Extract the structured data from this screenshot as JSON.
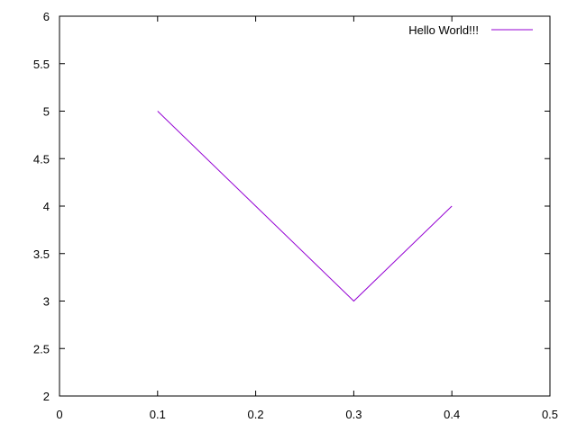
{
  "chart_data": {
    "type": "line",
    "title": "",
    "xlabel": "",
    "ylabel": "",
    "xlim": [
      0,
      0.5
    ],
    "ylim": [
      2,
      6
    ],
    "x_ticks": [
      0,
      0.1,
      0.2,
      0.3,
      0.4,
      0.5
    ],
    "x_tick_labels": [
      "0",
      "0.1",
      "0.2",
      "0.3",
      "0.4",
      "0.5"
    ],
    "y_ticks": [
      2,
      2.5,
      3,
      3.5,
      4,
      4.5,
      5,
      5.5,
      6
    ],
    "y_tick_labels": [
      "2",
      "2.5",
      "3",
      "3.5",
      "4",
      "4.5",
      "5",
      "5.5",
      "6"
    ],
    "grid": false,
    "legend_position": "top-right",
    "series": [
      {
        "name": "Hello World!!!",
        "color": "#9400d3",
        "x": [
          0.1,
          0.2,
          0.3,
          0.4
        ],
        "y": [
          5,
          4,
          3,
          4
        ]
      }
    ]
  }
}
